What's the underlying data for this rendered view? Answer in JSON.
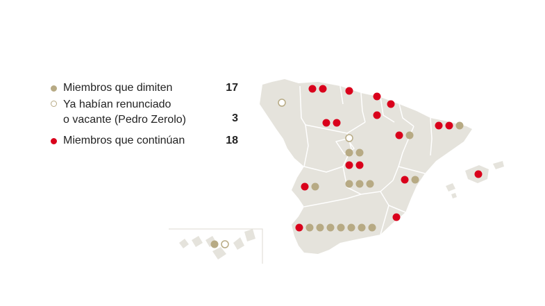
{
  "colors": {
    "land": "#e5e3dc",
    "border": "#ffffff",
    "dimiten": "#b7aa84",
    "renunciado_stroke": "#b7aa84",
    "continuan": "#d9001b"
  },
  "legend": [
    {
      "key": "dimiten",
      "label_lines": [
        "Miembros que dimiten"
      ],
      "count": "17",
      "marker": "filled-tan"
    },
    {
      "key": "renunciado",
      "label_lines": [
        "Ya habían renunciado",
        "o vacante (Pedro Zerolo)"
      ],
      "count": "3",
      "marker": "hollow-tan"
    },
    {
      "key": "continuan",
      "label_lines": [
        "Miembros que continúan"
      ],
      "count": "18",
      "marker": "filled-red"
    }
  ]
}
